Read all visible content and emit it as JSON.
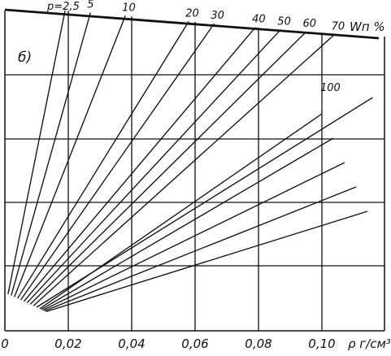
{
  "chart_data": {
    "type": "line",
    "panel_label": "б)",
    "xlabel": "ρ г/см³",
    "xlim": [
      0,
      0.12
    ],
    "x_ticks": [
      {
        "value": 0,
        "label": "0"
      },
      {
        "value": 0.02,
        "label": "0,02"
      },
      {
        "value": 0.04,
        "label": "0,04"
      },
      {
        "value": 0.06,
        "label": "0,06"
      },
      {
        "value": 0.08,
        "label": "0,08"
      },
      {
        "value": 0.1,
        "label": "0,10"
      }
    ],
    "grid": true,
    "top_scale_label": "Wп %",
    "series": [
      {
        "name": "р=2,5",
        "x": [
          0.001,
          0.019
        ]
      },
      {
        "name": "5",
        "x": [
          0.002,
          0.027
        ]
      },
      {
        "name": "10",
        "x": [
          0.003,
          0.038
        ]
      },
      {
        "name": "20",
        "x": [
          0.004,
          0.058
        ]
      },
      {
        "name": "30",
        "x": [
          0.005,
          0.066
        ]
      },
      {
        "name": "40",
        "x": [
          0.006,
          0.079
        ]
      },
      {
        "name": "50",
        "x": [
          0.007,
          0.087
        ]
      },
      {
        "name": "60",
        "x": [
          0.008,
          0.095
        ]
      },
      {
        "name": "70",
        "x": [
          0.009,
          0.104
        ]
      },
      {
        "name": "100",
        "x": [
          0.01,
          0.116
        ]
      }
    ],
    "extra_rays_to_right_side": 5
  }
}
